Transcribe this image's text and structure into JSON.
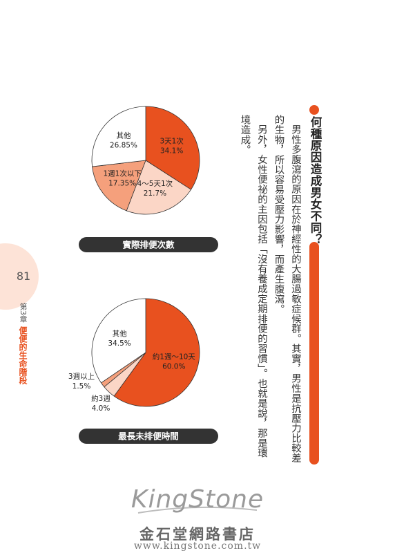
{
  "page_number": "81",
  "chapter": {
    "number_label": "第3章",
    "title": "便便的生命階段"
  },
  "heading": "何種原因造成男女不同？",
  "paragraphs": [
    "男性多腹瀉的原因在於神經性的大腸過敏症候群。其實，男性是抗壓力比較差的生物，所以容易受壓力影響，而產生腹瀉。",
    "另外，女性便祕的主因包括「沒有養成定期排便的習慣」。也就是說，那是環境造成。"
  ],
  "chart_data": [
    {
      "type": "pie",
      "title": "實際排便次數",
      "categories": [
        "3天1次",
        "4～5天1次",
        "1週1次以下",
        "其他"
      ],
      "values": [
        34.1,
        21.7,
        17.35,
        26.85
      ],
      "value_labels": [
        "34.1%",
        "21.7%",
        "17.35%",
        "26.85%"
      ],
      "colors": [
        "#e8511f",
        "#fbd6c6",
        "#f5a07c",
        "#ffffff"
      ]
    },
    {
      "type": "pie",
      "title": "最長未排便時間",
      "categories": [
        "約1週～10天",
        "約3週",
        "3週以上",
        "其他"
      ],
      "values": [
        60.0,
        4.0,
        1.5,
        34.5
      ],
      "value_labels": [
        "60.0%",
        "4.0%",
        "1.5%",
        "34.5%"
      ],
      "colors": [
        "#e8511f",
        "#fbd6c6",
        "#f5a07c",
        "#ffffff"
      ]
    }
  ],
  "watermark": {
    "logo": "KingStone",
    "name": "金石堂網路書店",
    "url": "www.kingstone.com.tw"
  }
}
